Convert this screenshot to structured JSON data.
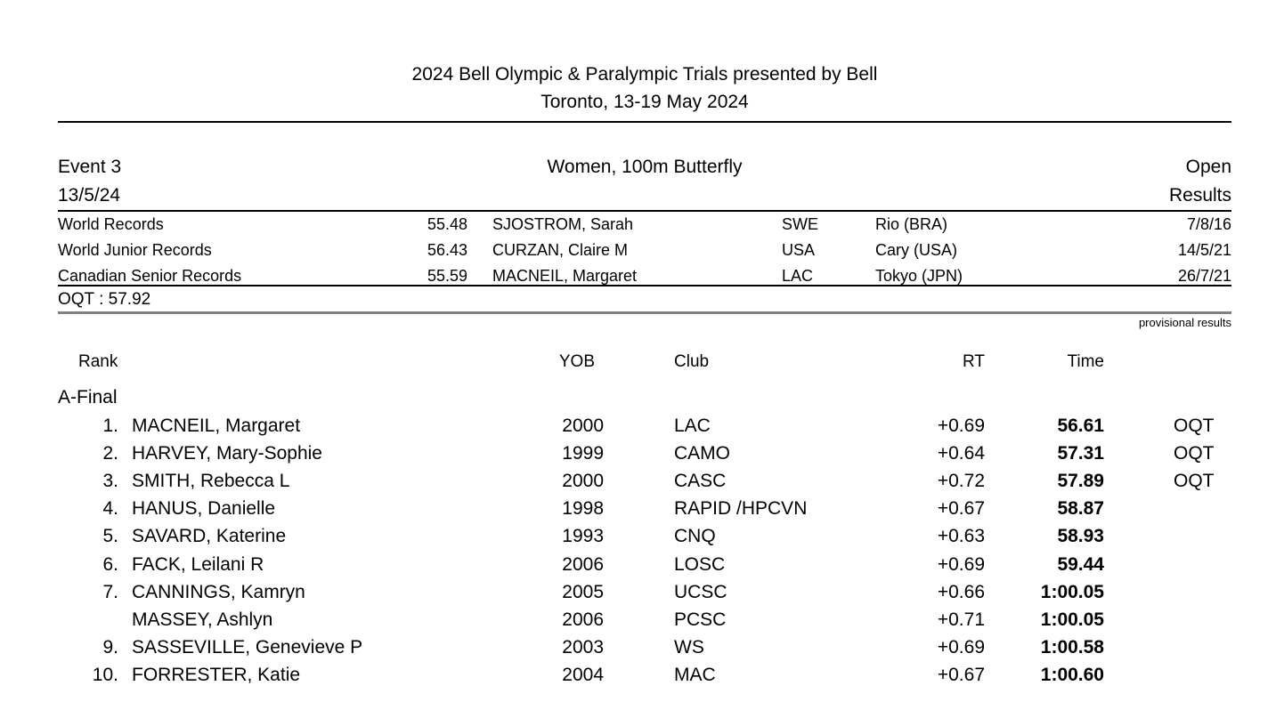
{
  "colors": {
    "text": "#000000",
    "divider_gray": "#808080"
  },
  "meet": {
    "title": "2024 Bell Olympic & Paralympic Trials presented by Bell",
    "subtitle": "Toronto, 13-19 May 2024"
  },
  "event": {
    "number_label": "Event 3",
    "date": "13/5/24",
    "name": "Women, 100m Butterfly",
    "category": "Open",
    "results_label": "Results"
  },
  "records": [
    {
      "label": "World Records",
      "time": "55.48",
      "holder": "SJOSTROM, Sarah",
      "nation": "SWE",
      "place": "Rio (BRA)",
      "date": "7/8/16"
    },
    {
      "label": "World Junior Records",
      "time": "56.43",
      "holder": "CURZAN, Claire M",
      "nation": "USA",
      "place": "Cary (USA)",
      "date": "14/5/21"
    },
    {
      "label": "Canadian Senior Records",
      "time": "55.59",
      "holder": "MACNEIL, Margaret",
      "nation": "LAC",
      "place": "Tokyo (JPN)",
      "date": "26/7/21"
    }
  ],
  "qualifying": {
    "oqt_label": "OQT : 57.92"
  },
  "status_note": "provisional results",
  "results": {
    "columns": {
      "rank": "Rank",
      "yob": "YOB",
      "club": "Club",
      "rt": "RT",
      "time": "Time"
    },
    "section_label": "A-Final",
    "rows": [
      {
        "rank": "1.",
        "name": "MACNEIL, Margaret",
        "yob": "2000",
        "club": "LAC",
        "rt": "+0.69",
        "time": "56.61",
        "qual": "OQT"
      },
      {
        "rank": "2.",
        "name": "HARVEY, Mary-Sophie",
        "yob": "1999",
        "club": "CAMO",
        "rt": "+0.64",
        "time": "57.31",
        "qual": "OQT"
      },
      {
        "rank": "3.",
        "name": "SMITH, Rebecca L",
        "yob": "2000",
        "club": "CASC",
        "rt": "+0.72",
        "time": "57.89",
        "qual": "OQT"
      },
      {
        "rank": "4.",
        "name": "HANUS, Danielle",
        "yob": "1998",
        "club": "RAPID /HPCVN",
        "rt": "+0.67",
        "time": "58.87",
        "qual": ""
      },
      {
        "rank": "5.",
        "name": "SAVARD, Katerine",
        "yob": "1993",
        "club": "CNQ",
        "rt": "+0.63",
        "time": "58.93",
        "qual": ""
      },
      {
        "rank": "6.",
        "name": "FACK, Leilani R",
        "yob": "2006",
        "club": "LOSC",
        "rt": "+0.69",
        "time": "59.44",
        "qual": ""
      },
      {
        "rank": "7.",
        "name": "CANNINGS, Kamryn",
        "yob": "2005",
        "club": "UCSC",
        "rt": "+0.66",
        "time": "1:00.05",
        "qual": ""
      },
      {
        "rank": "",
        "name": "MASSEY, Ashlyn",
        "yob": "2006",
        "club": "PCSC",
        "rt": "+0.71",
        "time": "1:00.05",
        "qual": ""
      },
      {
        "rank": "9.",
        "name": "SASSEVILLE, Genevieve P",
        "yob": "2003",
        "club": "WS",
        "rt": "+0.69",
        "time": "1:00.58",
        "qual": ""
      },
      {
        "rank": "10.",
        "name": "FORRESTER, Katie",
        "yob": "2004",
        "club": "MAC",
        "rt": "+0.67",
        "time": "1:00.60",
        "qual": ""
      }
    ]
  }
}
